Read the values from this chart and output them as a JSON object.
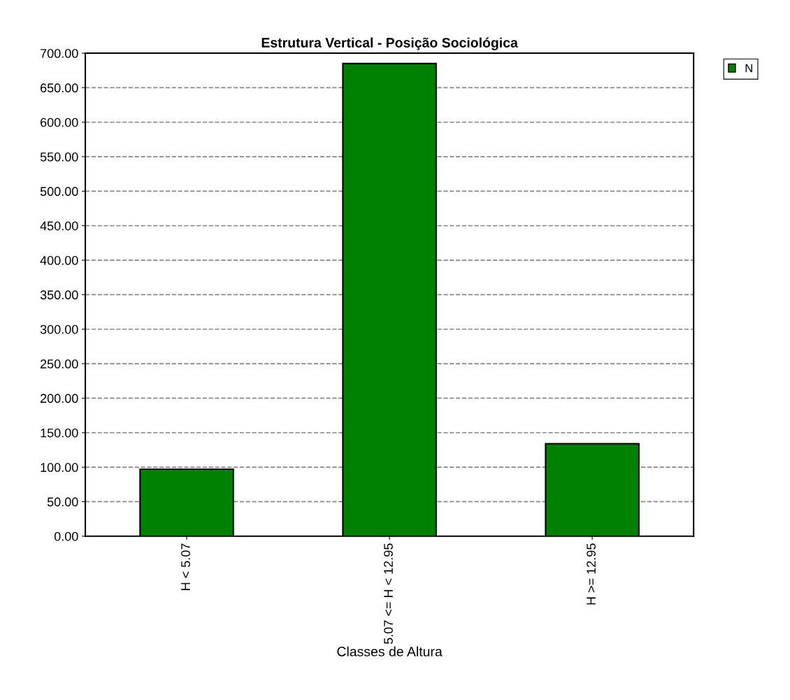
{
  "chart_data": {
    "type": "bar",
    "title": "Estrutura Vertical - Posição Sociológica",
    "xlabel": "Classes de Altura",
    "categories": [
      "H < 5.07",
      "5.07 <= H < 12.95",
      "H >= 12.95"
    ],
    "series": [
      {
        "name": "N",
        "color": "#008000",
        "values": [
          97,
          685,
          134
        ]
      }
    ],
    "ylim": [
      0,
      700
    ],
    "yticks": [
      {
        "value": 0,
        "label": "0.00"
      },
      {
        "value": 50,
        "label": "50.00"
      },
      {
        "value": 100,
        "label": "100.00"
      },
      {
        "value": 150,
        "label": "150.00"
      },
      {
        "value": 200,
        "label": "200.00"
      },
      {
        "value": 250,
        "label": "250.00"
      },
      {
        "value": 300,
        "label": "300.00"
      },
      {
        "value": 350,
        "label": "350.00"
      },
      {
        "value": 400,
        "label": "400.00"
      },
      {
        "value": 450,
        "label": "450.00"
      },
      {
        "value": 500,
        "label": "500.00"
      },
      {
        "value": 550,
        "label": "550.00"
      },
      {
        "value": 600,
        "label": "600.00"
      },
      {
        "value": 650,
        "label": "650.00"
      },
      {
        "value": 700,
        "label": "700.00"
      }
    ],
    "grid": "y",
    "legend": "top right"
  }
}
